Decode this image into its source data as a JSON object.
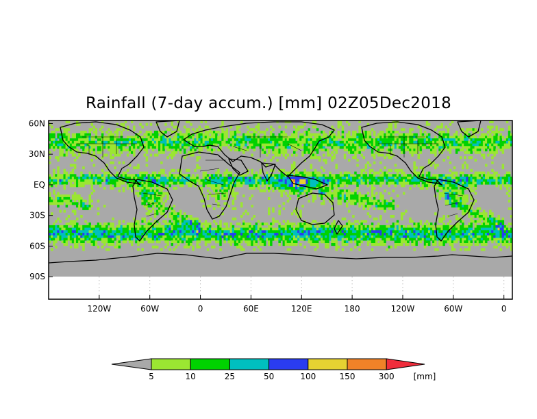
{
  "title": "Rainfall (7-day accum.) [mm] 02Z05Dec2018",
  "chart_data": {
    "type": "heatmap",
    "title": "Rainfall (7-day accum.) [mm] 02Z05Dec2018",
    "lat_ticks": [
      "60N",
      "30N",
      "EQ",
      "30S",
      "60S",
      "90S"
    ],
    "lon_ticks": [
      "120W",
      "60W",
      "0",
      "60E",
      "120E",
      "180",
      "120W",
      "60W",
      "0"
    ],
    "lat_values": [
      60,
      30,
      0,
      -30,
      -60,
      -90
    ],
    "lon_values": [
      -120,
      -60,
      0,
      60,
      120,
      180,
      240,
      300,
      360
    ],
    "xlim": [
      -180,
      370
    ],
    "ylim": [
      -112,
      63
    ],
    "grid": true,
    "no_data_color": "#a9a9a9",
    "colorbar": {
      "boundaries": [
        "5",
        "10",
        "25",
        "50",
        "100",
        "150",
        "300"
      ],
      "unit": "[mm]",
      "colors": [
        "#a9a9a9",
        "#9be632",
        "#00d200",
        "#00bfbf",
        "#2a3cf0",
        "#e6d232",
        "#f08228",
        "#f02d3c"
      ]
    }
  }
}
